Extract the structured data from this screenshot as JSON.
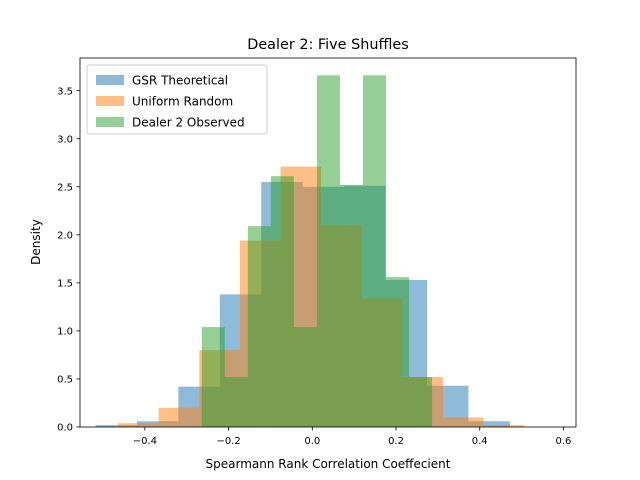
{
  "chart_data": {
    "type": "bar",
    "title": "Dealer 2: Five Shuffles",
    "xlabel": "Spearmann Rank Correlation Coeffecient",
    "ylabel": "Density",
    "xlim": [
      -0.555,
      0.63
    ],
    "ylim": [
      0,
      3.84
    ],
    "xticks": [
      -0.4,
      -0.2,
      0.0,
      0.2,
      0.4,
      0.6
    ],
    "yticks": [
      0.0,
      0.5,
      1.0,
      1.5,
      2.0,
      2.5,
      3.0,
      3.5
    ],
    "grid": false,
    "legend_position": "top-left",
    "series": [
      {
        "name": "GSR Theoretical",
        "color": "#1f77b4",
        "opacity": 0.5,
        "bins": [
          {
            "x0": -0.518,
            "x1": -0.419,
            "y": 0.02
          },
          {
            "x0": -0.419,
            "x1": -0.32,
            "y": 0.06
          },
          {
            "x0": -0.32,
            "x1": -0.221,
            "y": 0.42
          },
          {
            "x0": -0.221,
            "x1": -0.122,
            "y": 1.38
          },
          {
            "x0": -0.122,
            "x1": -0.023,
            "y": 2.55
          },
          {
            "x0": -0.023,
            "x1": 0.076,
            "y": 2.5
          },
          {
            "x0": 0.076,
            "x1": 0.175,
            "y": 2.51
          },
          {
            "x0": 0.175,
            "x1": 0.274,
            "y": 1.53
          },
          {
            "x0": 0.274,
            "x1": 0.373,
            "y": 0.43
          },
          {
            "x0": 0.373,
            "x1": 0.472,
            "y": 0.06
          }
        ]
      },
      {
        "name": "Uniform Random",
        "color": "#ff7f0e",
        "opacity": 0.5,
        "bins": [
          {
            "x0": -0.464,
            "x1": -0.367,
            "y": 0.04
          },
          {
            "x0": -0.367,
            "x1": -0.27,
            "y": 0.2
          },
          {
            "x0": -0.27,
            "x1": -0.173,
            "y": 0.8
          },
          {
            "x0": -0.173,
            "x1": -0.076,
            "y": 1.94
          },
          {
            "x0": -0.076,
            "x1": 0.021,
            "y": 2.71
          },
          {
            "x0": 0.021,
            "x1": 0.118,
            "y": 2.1
          },
          {
            "x0": 0.118,
            "x1": 0.215,
            "y": 1.34
          },
          {
            "x0": 0.215,
            "x1": 0.312,
            "y": 0.52
          },
          {
            "x0": 0.312,
            "x1": 0.409,
            "y": 0.1
          },
          {
            "x0": 0.409,
            "x1": 0.506,
            "y": 0.02
          }
        ]
      },
      {
        "name": "Dealer 2 Observed",
        "color": "#2ca02c",
        "opacity": 0.5,
        "bins": [
          {
            "x0": -0.264,
            "x1": -0.209,
            "y": 1.04
          },
          {
            "x0": -0.209,
            "x1": -0.154,
            "y": 0.52
          },
          {
            "x0": -0.154,
            "x1": -0.099,
            "y": 2.09
          },
          {
            "x0": -0.099,
            "x1": -0.044,
            "y": 2.61
          },
          {
            "x0": -0.044,
            "x1": 0.011,
            "y": 1.04
          },
          {
            "x0": 0.011,
            "x1": 0.066,
            "y": 3.66
          },
          {
            "x0": 0.066,
            "x1": 0.121,
            "y": 2.52
          },
          {
            "x0": 0.121,
            "x1": 0.176,
            "y": 3.66
          },
          {
            "x0": 0.176,
            "x1": 0.231,
            "y": 1.56
          },
          {
            "x0": 0.231,
            "x1": 0.286,
            "y": 0.52
          }
        ]
      }
    ]
  }
}
